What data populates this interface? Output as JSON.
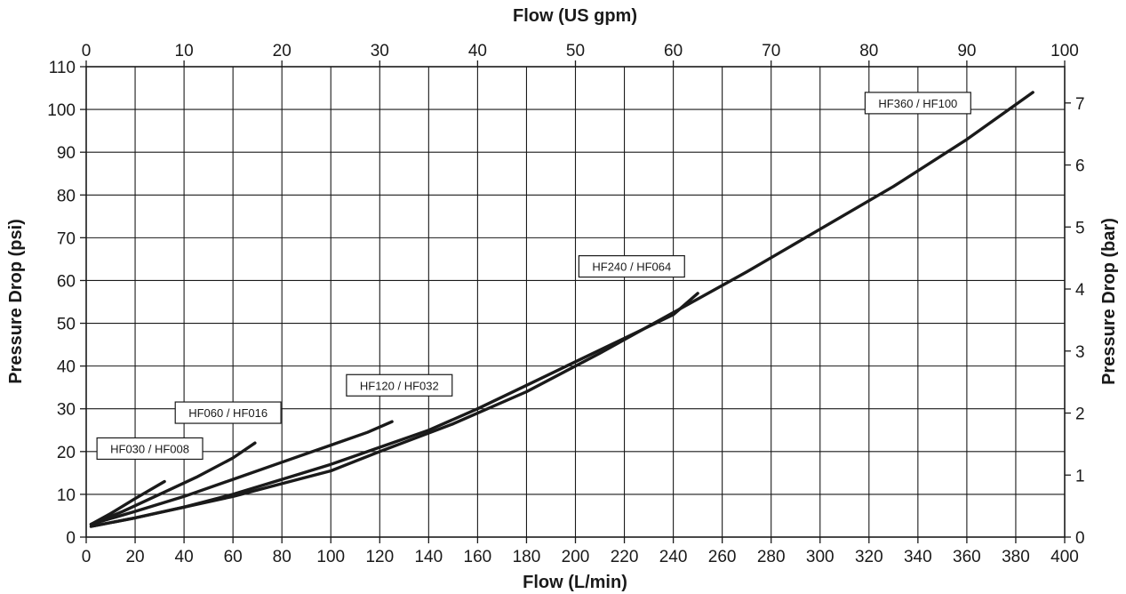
{
  "chart_data": {
    "type": "line",
    "title": "",
    "xlabel": "Flow (L/min)",
    "x2label": "Flow (US gpm)",
    "ylabel": "Pressure Drop (psi)",
    "y2label": "Pressure Drop (bar)",
    "xlim": [
      0,
      400
    ],
    "ylim": [
      0,
      110
    ],
    "x2lim": [
      0,
      100
    ],
    "y2lim": [
      0,
      7.585
    ],
    "xticks": [
      "0",
      "20",
      "40",
      "60",
      "80",
      "100",
      "120",
      "140",
      "160",
      "180",
      "200",
      "220",
      "240",
      "260",
      "280",
      "300",
      "320",
      "340",
      "360",
      "380",
      "400"
    ],
    "yticks": [
      "0",
      "10",
      "20",
      "30",
      "40",
      "50",
      "60",
      "70",
      "80",
      "90",
      "100",
      "110"
    ],
    "x2ticks": [
      "0",
      "10",
      "20",
      "30",
      "40",
      "50",
      "60",
      "70",
      "80",
      "90",
      "100"
    ],
    "y2ticks": [
      "0",
      "1",
      "2",
      "3",
      "4",
      "5",
      "6",
      "7"
    ],
    "grid": true,
    "line_color": "#1a1a1a",
    "series": [
      {
        "name": "HF030 / HF008",
        "x": [
          2,
          10,
          20,
          32
        ],
        "y": [
          3,
          5.5,
          9,
          13
        ]
      },
      {
        "name": "HF060 / HF016",
        "x": [
          2,
          15,
          30,
          45,
          60,
          69
        ],
        "y": [
          3,
          6,
          10,
          14,
          18.5,
          22
        ]
      },
      {
        "name": "HF120 / HF032",
        "x": [
          2,
          20,
          40,
          60,
          80,
          100,
          115,
          125
        ],
        "y": [
          3,
          6,
          9.5,
          13.5,
          17.5,
          21.5,
          24.5,
          27
        ]
      },
      {
        "name": "HF240 / HF064",
        "x": [
          2,
          20,
          40,
          60,
          80,
          100,
          120,
          140,
          160,
          180,
          200,
          220,
          240,
          250
        ],
        "y": [
          2.5,
          4.5,
          7,
          10,
          13.5,
          17,
          21,
          25,
          30,
          35.5,
          41,
          46.5,
          52,
          57
        ]
      },
      {
        "name": "HF360 / HF100",
        "x": [
          2,
          20,
          40,
          60,
          80,
          100,
          120,
          150,
          180,
          210,
          240,
          270,
          300,
          330,
          360,
          387
        ],
        "y": [
          2.5,
          4.5,
          7,
          9.5,
          12.5,
          15.5,
          20,
          26.5,
          34,
          43,
          52.5,
          62,
          72,
          82,
          93,
          104
        ]
      }
    ]
  }
}
